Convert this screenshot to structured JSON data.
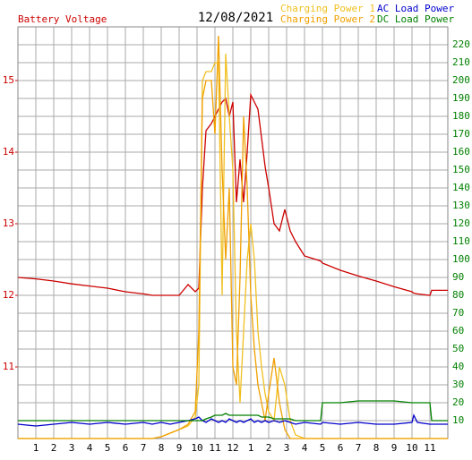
{
  "chart_data": {
    "type": "line",
    "title": "12/08/2021",
    "x": [
      0,
      1,
      2,
      3,
      4,
      5,
      6,
      7,
      7.5,
      8,
      8.5,
      9,
      9.5,
      9.9,
      10.1,
      10.3,
      10.5,
      10.8,
      11,
      11.2,
      11.4,
      11.6,
      11.8,
      12,
      12.2,
      12.4,
      12.6,
      12.8,
      13,
      13.2,
      13.4,
      13.6,
      13.8,
      14,
      14.3,
      14.6,
      14.9,
      15.2,
      15.5,
      16,
      16.9,
      17,
      18,
      19,
      20,
      21,
      22,
      22.1,
      22.3,
      23,
      23.1,
      24
    ],
    "xlim": [
      0,
      24
    ],
    "xticks": [
      1,
      2,
      3,
      4,
      5,
      6,
      7,
      8,
      9,
      10,
      11,
      12,
      {
        "value": 13,
        "label": "1"
      },
      {
        "value": 14,
        "label": "2"
      },
      {
        "value": 15,
        "label": "3"
      },
      {
        "value": 16,
        "label": "4"
      },
      {
        "value": 17,
        "label": "5"
      },
      {
        "value": 18,
        "label": "6"
      },
      {
        "value": 19,
        "label": "7"
      },
      {
        "value": 20,
        "label": "8"
      },
      {
        "value": 21,
        "label": "9"
      },
      {
        "value": 22,
        "label": "10"
      },
      {
        "value": 23,
        "label": "11"
      }
    ],
    "ylim": [
      10,
      15.75
    ],
    "yticks": [
      11,
      12,
      13,
      14,
      15
    ],
    "y2lim": [
      0,
      230
    ],
    "y2ticks": [
      10,
      20,
      30,
      40,
      50,
      60,
      70,
      80,
      90,
      100,
      110,
      120,
      130,
      140,
      150,
      160,
      170,
      180,
      190,
      200,
      210,
      220
    ],
    "grid": true,
    "series": [
      {
        "name": "Battery Voltage",
        "color": "#cc0000",
        "values": [
          12.25,
          12.23,
          12.2,
          12.16,
          12.13,
          12.1,
          12.05,
          12.02,
          12.0,
          12.0,
          12.0,
          12.0,
          12.15,
          12.05,
          12.1,
          13.5,
          14.3,
          14.4,
          14.5,
          14.6,
          14.7,
          14.75,
          14.5,
          14.7,
          13.3,
          13.9,
          13.3,
          14.0,
          14.8,
          14.7,
          14.6,
          14.2,
          13.8,
          13.5,
          13.0,
          12.9,
          13.2,
          12.9,
          12.75,
          12.55,
          12.48,
          12.45,
          12.35,
          12.27,
          12.2,
          12.12,
          12.05,
          12.03,
          12.02,
          12.0,
          12.07,
          12.07
        ]
      },
      {
        "name": "Charging Power 1",
        "color": "#f0c020",
        "axis": "y2",
        "values": [
          0,
          0,
          0,
          0,
          0,
          0,
          0,
          0,
          0,
          1,
          3,
          5,
          7,
          12,
          30,
          200,
          205,
          205,
          210,
          210,
          80,
          215,
          180,
          150,
          60,
          20,
          60,
          100,
          120,
          100,
          60,
          40,
          25,
          15,
          10,
          40,
          30,
          10,
          2,
          0,
          0,
          0,
          0,
          0,
          0,
          0,
          0,
          0,
          0,
          0,
          0,
          0
        ]
      },
      {
        "name": "Charging Power 2",
        "color": "#f0a000",
        "axis": "y2",
        "values": [
          0,
          0,
          0,
          0,
          0,
          0,
          0,
          0,
          0,
          1,
          3,
          5,
          8,
          15,
          60,
          190,
          200,
          200,
          170,
          225,
          150,
          100,
          140,
          40,
          30,
          90,
          180,
          140,
          80,
          50,
          30,
          20,
          10,
          25,
          45,
          20,
          5,
          0,
          0,
          0,
          0,
          0,
          0,
          0,
          0,
          0,
          0,
          0,
          0,
          0,
          0,
          0
        ]
      },
      {
        "name": "AC Load Power",
        "color": "#0000cc",
        "axis": "y2",
        "values": [
          8,
          7,
          8,
          9,
          8,
          9,
          8,
          9,
          8,
          9,
          8,
          9,
          10,
          11,
          12,
          10,
          9,
          11,
          10,
          9,
          10,
          9,
          11,
          10,
          9,
          10,
          9,
          10,
          11,
          9,
          10,
          9,
          10,
          9,
          10,
          9,
          10,
          9,
          8,
          9,
          8,
          9,
          8,
          9,
          8,
          8,
          9,
          13,
          9,
          8,
          8,
          8
        ]
      },
      {
        "name": "DC Load Power",
        "color": "#008000",
        "axis": "y2",
        "values": [
          10,
          10,
          10,
          10,
          10,
          10,
          10,
          10,
          10,
          10,
          10,
          10,
          10,
          10,
          10,
          10,
          11,
          12,
          13,
          13,
          13,
          14,
          13,
          13,
          13,
          13,
          13,
          13,
          13,
          13,
          13,
          12,
          12,
          12,
          11,
          11,
          11,
          11,
          10,
          10,
          10,
          20,
          20,
          21,
          21,
          21,
          20,
          20,
          20,
          20,
          10,
          10
        ]
      }
    ]
  }
}
